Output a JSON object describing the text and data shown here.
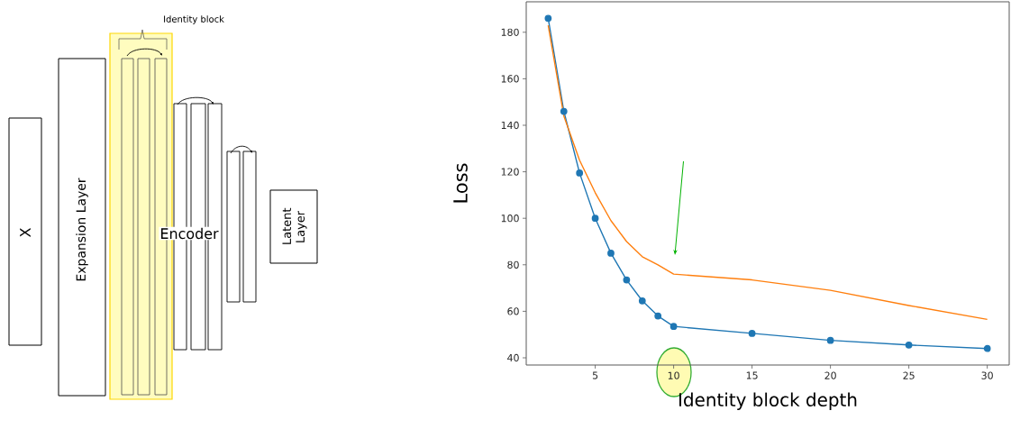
{
  "chart_data": [
    {
      "type": "other",
      "annotations": [
        "Identity block",
        "X",
        "Expansion Layer",
        "Encoder",
        "Latent Layer"
      ]
    },
    {
      "type": "line",
      "xlabel": "Identity block depth",
      "ylabel": "Loss",
      "xlim": [
        0.6,
        31.4
      ],
      "ylim": [
        36.9,
        193.1
      ],
      "xticks": [
        5,
        10,
        15,
        20,
        25,
        30
      ],
      "yticks": [
        40,
        60,
        80,
        100,
        120,
        140,
        160,
        180
      ],
      "series": [
        {
          "color": "#1f77b4",
          "marker": "circle",
          "x": [
            2,
            3,
            4,
            5,
            6,
            7,
            8,
            9,
            10,
            15,
            20,
            25,
            30
          ],
          "values": [
            186,
            146,
            119.5,
            100,
            85,
            73.5,
            64.5,
            58,
            53.5,
            50.5,
            47.5,
            45.5,
            44
          ]
        },
        {
          "color": "#ff7f0e",
          "marker": "none",
          "x": [
            2,
            3,
            4,
            5,
            6,
            7,
            8,
            9,
            10,
            15,
            20,
            25,
            30
          ],
          "values": [
            183,
            144,
            125,
            111,
            99,
            90,
            83.5,
            80,
            76,
            73.5,
            69,
            62.5,
            56.5
          ]
        }
      ]
    }
  ]
}
